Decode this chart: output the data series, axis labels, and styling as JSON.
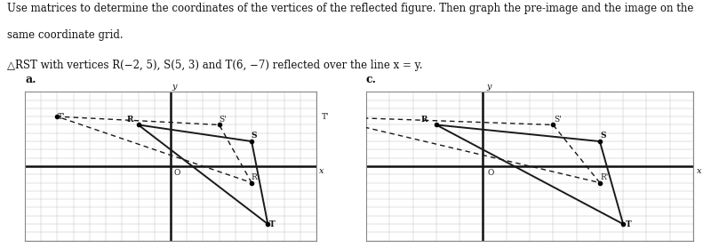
{
  "title_line1": "Use matrices to determine the coordinates of the vertices of the reflected figure. Then graph the pre-image and the image on the",
  "title_line2": "same coordinate grid.",
  "problem_text": "△RST with vertices R(−2, 5), S(5, 3) and T(6, −7) reflected over the line x = y.",
  "label_a": "a.",
  "label_c": "c.",
  "R": [
    -2,
    5
  ],
  "S": [
    5,
    3
  ],
  "T": [
    6,
    -7
  ],
  "Rp": [
    5,
    -2
  ],
  "Sp": [
    3,
    5
  ],
  "Tp": [
    -7,
    6
  ],
  "graph_a_xlim": [
    -9,
    9
  ],
  "graph_a_ylim": [
    -9,
    9
  ],
  "graph_c_xlim": [
    -5,
    9
  ],
  "graph_c_ylim": [
    -9,
    9
  ],
  "pre_image_color": "#1a1a1a",
  "image_color": "#1a1a1a",
  "background": "#ffffff",
  "grid_color": "#bbbbbb",
  "axis_color": "#111111",
  "font_color": "#111111",
  "font_size_title": 8.5,
  "font_size_label": 9,
  "font_size_point": 6.5,
  "font_size_axis_label": 7
}
